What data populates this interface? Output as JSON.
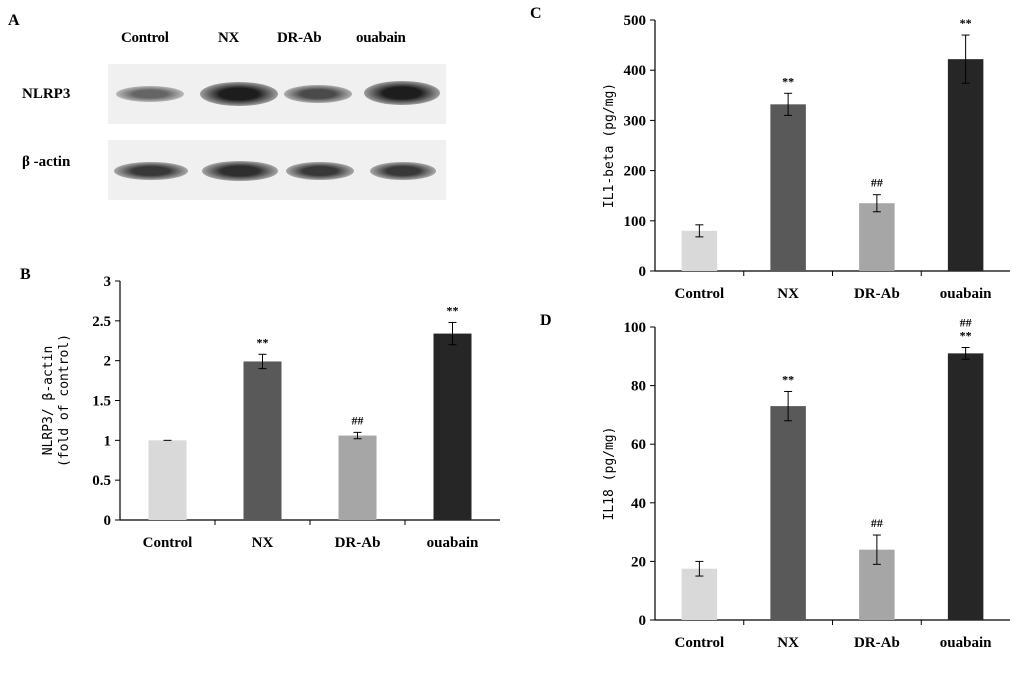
{
  "panel_a": {
    "letter": "A",
    "lanes": [
      "Control",
      "NX",
      "DR-Ab",
      "ouabain"
    ],
    "rows": [
      {
        "label": "NLRP3",
        "intensity": [
          0.55,
          0.95,
          0.7,
          0.95
        ]
      },
      {
        "label": "β -actin",
        "intensity": [
          0.8,
          0.85,
          0.8,
          0.8
        ]
      }
    ]
  },
  "chart_data": [
    {
      "id": "B",
      "letter": "B",
      "type": "bar",
      "categories": [
        "Control",
        "NX",
        "DR-Ab",
        "ouabain"
      ],
      "values": [
        1.0,
        1.99,
        1.06,
        2.34
      ],
      "errors": [
        0.0,
        0.09,
        0.04,
        0.14
      ],
      "labels": [
        "",
        "**",
        "##",
        "**"
      ],
      "colors": [
        "#d9d9d9",
        "#595959",
        "#a6a6a6",
        "#262626"
      ],
      "ylabel_lines": [
        "NLRP3/ β-actin",
        "(fold of control)"
      ],
      "ylim": [
        0,
        3
      ],
      "ticks": [
        "0",
        "0.5",
        "1",
        "1.5",
        "2",
        "2.5",
        "3"
      ],
      "tick_values": [
        0,
        0.5,
        1,
        1.5,
        2,
        2.5,
        3
      ]
    },
    {
      "id": "C",
      "letter": "C",
      "type": "bar",
      "categories": [
        "Control",
        "NX",
        "DR-Ab",
        "ouabain"
      ],
      "values": [
        80,
        332,
        135,
        422
      ],
      "errors": [
        12,
        22,
        17,
        48
      ],
      "labels": [
        "",
        "**",
        "##",
        "**"
      ],
      "colors": [
        "#d9d9d9",
        "#595959",
        "#a6a6a6",
        "#262626"
      ],
      "ylabel_lines": [
        "IL1-beta (pg/mg)"
      ],
      "ylim": [
        0,
        500
      ],
      "ticks": [
        "0",
        "100",
        "200",
        "300",
        "400",
        "500"
      ],
      "tick_values": [
        0,
        100,
        200,
        300,
        400,
        500
      ]
    },
    {
      "id": "D",
      "letter": "D",
      "type": "bar",
      "categories": [
        "Control",
        "NX",
        "DR-Ab",
        "ouabain"
      ],
      "values": [
        17.5,
        73,
        24,
        91
      ],
      "errors": [
        2.5,
        5,
        5,
        2
      ],
      "labels": [
        "",
        "**",
        "##",
        "##\n**"
      ],
      "colors": [
        "#d9d9d9",
        "#595959",
        "#a6a6a6",
        "#262626"
      ],
      "ylabel_lines": [
        "IL18 (pg/mg)"
      ],
      "ylim": [
        0,
        100
      ],
      "ticks": [
        "0",
        "20",
        "40",
        "60",
        "80",
        "100"
      ],
      "tick_values": [
        0,
        20,
        40,
        60,
        80,
        100
      ]
    }
  ]
}
